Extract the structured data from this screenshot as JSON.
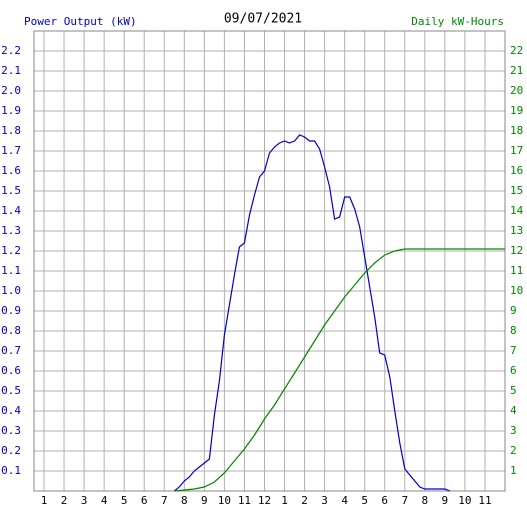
{
  "chart_data": {
    "type": "line",
    "title": "09/07/2021",
    "y_label": "Power Output (kW)",
    "y2_label": "Daily kW-Hours",
    "xlim": [
      0.5,
      24
    ],
    "xticks": [
      1,
      2,
      3,
      4,
      5,
      6,
      7,
      8,
      9,
      10,
      11,
      12,
      {
        "value": 13,
        "label": "1"
      },
      {
        "value": 14,
        "label": "2"
      },
      {
        "value": 15,
        "label": "3"
      },
      {
        "value": 16,
        "label": "4"
      },
      {
        "value": 17,
        "label": "5"
      },
      {
        "value": 18,
        "label": "6"
      },
      {
        "value": 19,
        "label": "7"
      },
      {
        "value": 20,
        "label": "8"
      },
      {
        "value": 21,
        "label": "9"
      },
      {
        "value": 22,
        "label": "10"
      },
      {
        "value": 23,
        "label": "11"
      }
    ],
    "ylim": [
      0,
      2.3
    ],
    "yticks": [
      0.1,
      0.2,
      0.3,
      0.4,
      0.5,
      0.6,
      0.7,
      0.8,
      0.9,
      {
        "value": 1,
        "label": "1.0"
      },
      1.1,
      1.2,
      1.3,
      1.4,
      1.5,
      1.6,
      1.7,
      1.8,
      1.9,
      {
        "value": 2,
        "label": "2.0"
      },
      2.1,
      2.2
    ],
    "y2lim": [
      0,
      23
    ],
    "y2ticks": [
      1,
      2,
      3,
      4,
      5,
      6,
      7,
      8,
      9,
      10,
      11,
      12,
      13,
      14,
      15,
      16,
      17,
      18,
      19,
      20,
      21,
      22
    ],
    "grid": true,
    "series": [
      {
        "color": "#0000cc",
        "x": [
          7.5,
          7.75,
          8,
          8.25,
          8.5,
          8.75,
          9,
          9.25,
          9.5,
          9.75,
          10,
          10.25,
          10.5,
          10.75,
          11,
          11.25,
          11.5,
          11.75,
          12,
          12.25,
          12.5,
          12.75,
          13,
          13.25,
          13.5,
          13.75,
          14,
          14.25,
          14.5,
          14.75,
          15,
          15.25,
          15.5,
          15.75,
          16,
          16.25,
          16.5,
          16.75,
          17,
          17.25,
          17.5,
          17.75,
          18,
          18.25,
          18.5,
          18.75,
          19,
          19.25,
          19.5,
          19.75,
          20,
          20.25,
          20.5,
          20.75,
          21,
          21.25
        ],
        "values": [
          0,
          0.02,
          0.05,
          0.07,
          0.1,
          0.12,
          0.14,
          0.16,
          0.38,
          0.55,
          0.78,
          0.93,
          1.08,
          1.22,
          1.24,
          1.38,
          1.48,
          1.57,
          1.6,
          1.69,
          1.72,
          1.74,
          1.75,
          1.74,
          1.75,
          1.78,
          1.77,
          1.75,
          1.75,
          1.71,
          1.62,
          1.52,
          1.36,
          1.37,
          1.47,
          1.47,
          1.41,
          1.32,
          1.17,
          1.02,
          0.87,
          0.69,
          0.68,
          0.57,
          0.4,
          0.24,
          0.11,
          0.08,
          0.05,
          0.02,
          0.01,
          0.01,
          0.01,
          0.01,
          0.01,
          0
        ]
      },
      {
        "color": "#008800",
        "axis": "y2",
        "x": [
          7.5,
          8,
          8.5,
          9,
          9.5,
          10,
          10.5,
          11,
          11.5,
          12,
          12.5,
          13,
          13.5,
          14,
          14.5,
          15,
          15.5,
          16,
          16.5,
          17,
          17.5,
          18,
          18.5,
          19,
          24
        ],
        "values": [
          0,
          0.05,
          0.1,
          0.2,
          0.45,
          0.9,
          1.5,
          2.1,
          2.8,
          3.6,
          4.3,
          5.1,
          5.9,
          6.7,
          7.5,
          8.3,
          9.0,
          9.7,
          10.3,
          10.9,
          11.4,
          11.8,
          12.0,
          12.1,
          12.1
        ]
      }
    ]
  }
}
